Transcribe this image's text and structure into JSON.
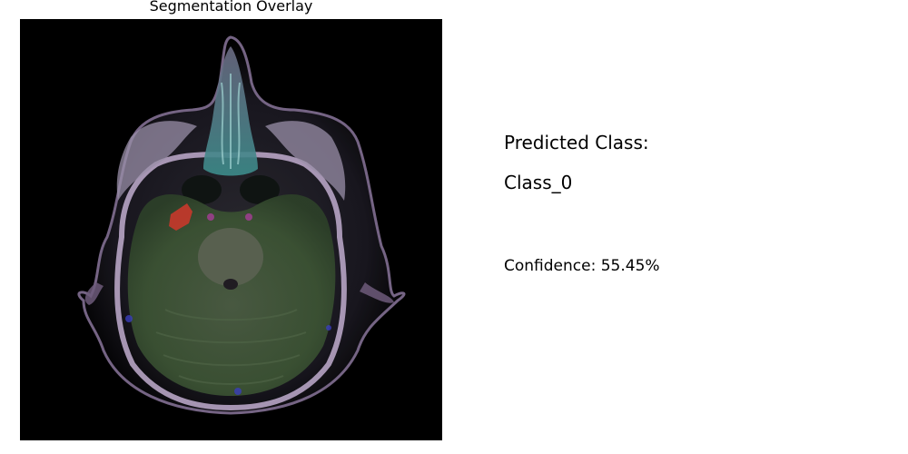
{
  "figure": {
    "title": "Segmentation Overlay"
  },
  "prediction": {
    "heading": "Predicted Class:",
    "class_label": "Class_0",
    "confidence_label": "Confidence:",
    "confidence_value": "55.45%"
  },
  "overlay": {
    "image_kind": "axial brain MRI slice with segmentation overlay",
    "colors": {
      "background": "#000000",
      "green_region": "#3d5a30",
      "red_region": "#c0392b",
      "skull_rim": "#b7a4c4",
      "blue_speckle": "#3a3dbb",
      "teal_nasal": "#5fa7a5"
    }
  }
}
